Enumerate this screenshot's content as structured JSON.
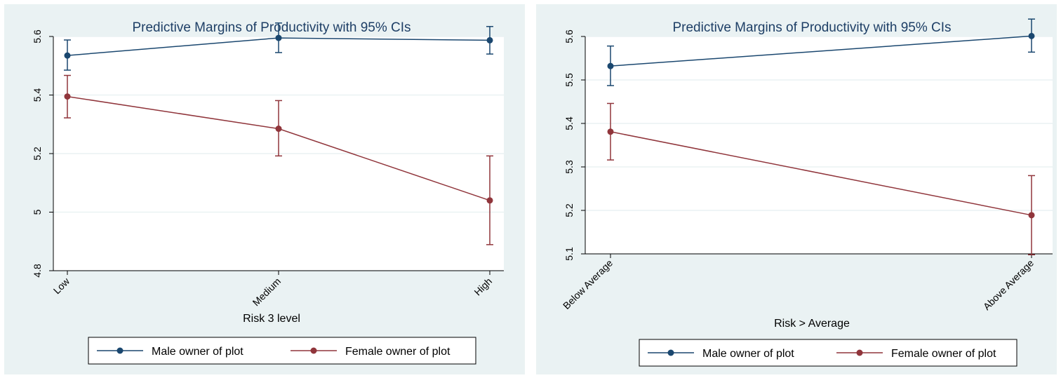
{
  "chart_data": [
    {
      "type": "line",
      "title": "Predictive Margins of Productivity with 95% CIs",
      "xlabel": "Risk 3 level",
      "ylabel": "",
      "categories": [
        "Low",
        "Medium",
        "High"
      ],
      "ylim": [
        4.8,
        5.6
      ],
      "yticks": [
        "4.8",
        "5",
        "5.2",
        "5.4",
        "5.6"
      ],
      "grid": true,
      "legend_position": "bottom",
      "series": [
        {
          "name": "Male owner of plot",
          "color": "#1a476f",
          "values": [
            5.535,
            5.595,
            5.587
          ],
          "ci_low": [
            5.485,
            5.545,
            5.54
          ],
          "ci_high": [
            5.588,
            5.646,
            5.634
          ]
        },
        {
          "name": "Female owner of plot",
          "color": "#90353b",
          "values": [
            5.395,
            5.285,
            5.04
          ],
          "ci_low": [
            5.322,
            5.192,
            4.889
          ],
          "ci_high": [
            5.467,
            5.381,
            5.192
          ]
        }
      ]
    },
    {
      "type": "line",
      "title": "Predictive Margins of Productivity with 95% CIs",
      "xlabel": "Risk > Average",
      "ylabel": "",
      "categories": [
        "Below Average",
        "Above Average"
      ],
      "ylim": [
        5.1,
        5.6
      ],
      "yticks": [
        "5.1",
        "5.2",
        "5.3",
        "5.4",
        "5.5",
        "5.6"
      ],
      "grid": true,
      "legend_position": "bottom",
      "series": [
        {
          "name": "Male owner of plot",
          "color": "#1a476f",
          "values": [
            5.532,
            5.601
          ],
          "ci_low": [
            5.487,
            5.564
          ],
          "ci_high": [
            5.578,
            5.64
          ]
        },
        {
          "name": "Female owner of plot",
          "color": "#90353b",
          "values": [
            5.381,
            5.189
          ],
          "ci_low": [
            5.316,
            5.098
          ],
          "ci_high": [
            5.446,
            5.28
          ]
        }
      ]
    }
  ]
}
